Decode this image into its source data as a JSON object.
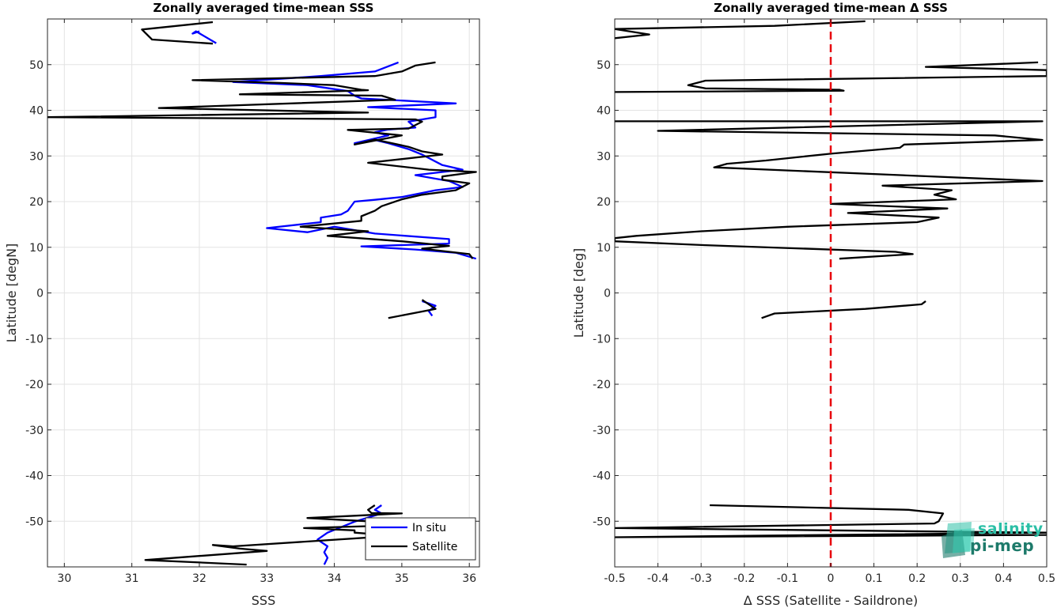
{
  "chart_data": [
    {
      "type": "line",
      "title": "Zonally averaged time-mean SSS",
      "xlabel": "SSS",
      "ylabel": "Latitude [degN]",
      "xlim": [
        29.75,
        36.15
      ],
      "ylim": [
        -60,
        60
      ],
      "xticks": [
        30,
        31,
        32,
        33,
        34,
        35,
        36
      ],
      "yticks": [
        -50,
        -40,
        -30,
        -20,
        -10,
        0,
        10,
        20,
        30,
        40,
        50
      ],
      "grid": true,
      "legend_position": "bottom-right",
      "series": [
        {
          "name": "In situ",
          "color": "#0000ff",
          "segments": [
            [
              [
                32.25,
                54.7
              ],
              [
                31.95,
                57.3
              ],
              [
                31.9,
                56.8
              ],
              [
                32.0,
                57.3
              ]
            ],
            [
              [
                34.95,
                50.5
              ],
              [
                34.6,
                48.5
              ],
              [
                33.8,
                47.5
              ],
              [
                32.5,
                46.2
              ],
              [
                33.6,
                45.5
              ],
              [
                34.2,
                44.2
              ],
              [
                34.3,
                43.2
              ],
              [
                34.4,
                42.6
              ],
              [
                35.8,
                41.5
              ],
              [
                34.5,
                40.7
              ],
              [
                35.5,
                40.0
              ],
              [
                35.5,
                38.5
              ],
              [
                35.1,
                37.5
              ],
              [
                35.2,
                36.2
              ],
              [
                34.8,
                35.8
              ],
              [
                34.6,
                35.2
              ],
              [
                34.8,
                34.5
              ],
              [
                34.3,
                32.8
              ],
              [
                34.6,
                33.5
              ],
              [
                34.8,
                32.8
              ],
              [
                35.1,
                31.5
              ],
              [
                35.3,
                30.3
              ],
              [
                35.6,
                28.0
              ],
              [
                35.9,
                27.0
              ],
              [
                35.2,
                25.8
              ],
              [
                35.7,
                24.5
              ],
              [
                35.9,
                23.2
              ],
              [
                35.5,
                22.5
              ],
              [
                35.0,
                21.0
              ],
              [
                34.6,
                20.4
              ],
              [
                34.3,
                20.0
              ],
              [
                34.2,
                18.0
              ],
              [
                34.1,
                17.2
              ],
              [
                33.8,
                16.5
              ],
              [
                33.8,
                15.5
              ],
              [
                33.0,
                14.2
              ],
              [
                33.6,
                13.3
              ],
              [
                34.0,
                14.5
              ],
              [
                34.6,
                13.0
              ],
              [
                35.7,
                11.8
              ],
              [
                35.7,
                10.8
              ],
              [
                34.4,
                10.2
              ],
              [
                35.2,
                9.5
              ],
              [
                35.8,
                8.8
              ],
              [
                36.1,
                7.5
              ]
            ],
            [
              [
                35.3,
                -1.8
              ],
              [
                35.5,
                -2.8
              ],
              [
                35.4,
                -4.0
              ],
              [
                35.45,
                -5.0
              ]
            ],
            [
              [
                34.7,
                -46.5
              ],
              [
                34.6,
                -47.5
              ],
              [
                34.7,
                -48.3
              ],
              [
                34.3,
                -50.1
              ],
              [
                33.9,
                -52.5
              ],
              [
                33.75,
                -54.0
              ],
              [
                33.9,
                -55.5
              ],
              [
                33.85,
                -56.8
              ],
              [
                33.9,
                -58.0
              ],
              [
                33.85,
                -59.5
              ]
            ]
          ]
        },
        {
          "name": "Satellite",
          "color": "#000000",
          "segments": [
            [
              [
                32.2,
                54.6
              ],
              [
                31.3,
                55.5
              ],
              [
                31.15,
                57.7
              ],
              [
                32.2,
                59.3
              ]
            ],
            [
              [
                35.5,
                50.5
              ],
              [
                35.2,
                49.8
              ],
              [
                35.0,
                48.5
              ],
              [
                34.6,
                47.5
              ],
              [
                31.9,
                46.6
              ],
              [
                33.2,
                46.0
              ],
              [
                34.0,
                45.5
              ],
              [
                34.4,
                44.5
              ],
              [
                34.5,
                44.4
              ],
              [
                32.6,
                43.5
              ],
              [
                34.7,
                43.2
              ],
              [
                34.9,
                42.3
              ],
              [
                31.4,
                40.5
              ],
              [
                34.5,
                39.5
              ],
              [
                29.75,
                38.5
              ],
              [
                35.2,
                38.0
              ],
              [
                35.3,
                37.5
              ],
              [
                35.1,
                36.0
              ],
              [
                34.2,
                35.7
              ],
              [
                35.0,
                34.5
              ],
              [
                34.3,
                32.5
              ],
              [
                34.6,
                33.6
              ],
              [
                35.1,
                32.0
              ],
              [
                35.3,
                31.0
              ],
              [
                35.6,
                30.3
              ],
              [
                34.5,
                28.5
              ],
              [
                35.4,
                27.0
              ],
              [
                36.1,
                26.5
              ],
              [
                35.6,
                25.5
              ],
              [
                35.6,
                24.8
              ],
              [
                36.0,
                24.0
              ],
              [
                35.8,
                22.5
              ],
              [
                35.3,
                21.5
              ],
              [
                35.0,
                20.5
              ],
              [
                34.7,
                19.0
              ],
              [
                34.6,
                18.0
              ],
              [
                34.4,
                16.8
              ],
              [
                34.4,
                15.8
              ],
              [
                33.5,
                14.5
              ],
              [
                34.5,
                13.5
              ],
              [
                33.9,
                12.5
              ],
              [
                35.0,
                11.3
              ],
              [
                35.7,
                10.3
              ],
              [
                35.3,
                9.7
              ],
              [
                36.0,
                8.5
              ],
              [
                36.05,
                7.5
              ]
            ],
            [
              [
                35.3,
                -1.5
              ],
              [
                35.5,
                -3.5
              ],
              [
                34.8,
                -5.5
              ]
            ],
            [
              [
                34.6,
                -46.5
              ],
              [
                34.5,
                -47.5
              ],
              [
                34.55,
                -48.2
              ],
              [
                35.0,
                -48.3
              ],
              [
                34.3,
                -48.8
              ],
              [
                33.6,
                -49.3
              ],
              [
                34.5,
                -50.0
              ],
              [
                34.7,
                -51.0
              ],
              [
                33.55,
                -51.5
              ],
              [
                34.3,
                -52.0
              ],
              [
                34.3,
                -52.5
              ],
              [
                34.9,
                -53.2
              ],
              [
                32.5,
                -55.5
              ],
              [
                32.2,
                -55.2
              ],
              [
                32.6,
                -56.0
              ],
              [
                33.0,
                -56.5
              ],
              [
                31.2,
                -58.5
              ],
              [
                32.7,
                -59.5
              ]
            ]
          ]
        }
      ]
    },
    {
      "type": "line",
      "title": "Zonally averaged time-mean Δ SSS",
      "xlabel": "Δ SSS (Satellite - Saildrone)",
      "ylabel": "Latitude [deg]",
      "xlim": [
        -0.5,
        0.5
      ],
      "ylim": [
        -60,
        60
      ],
      "xticks": [
        -0.5,
        -0.4,
        -0.3,
        -0.2,
        -0.1,
        0,
        0.1,
        0.2,
        0.3,
        0.4,
        0.5
      ],
      "yticks": [
        -50,
        -40,
        -30,
        -20,
        -10,
        0,
        10,
        20,
        30,
        40,
        50
      ],
      "grid": true,
      "reference_line": {
        "x": 0,
        "color": "#e8000b",
        "style": "dashed"
      },
      "series": [
        {
          "color": "#000000",
          "segments": [
            [
              [
                0.08,
                59.5
              ],
              [
                -0.13,
                58.5
              ],
              [
                -0.5,
                57.8
              ],
              [
                -0.42,
                56.6
              ],
              [
                -0.5,
                55.8
              ]
            ],
            [
              [
                0.48,
                50.5
              ],
              [
                0.22,
                49.5
              ],
              [
                0.5,
                48.8
              ],
              [
                0.5,
                47.5
              ],
              [
                -0.29,
                46.5
              ],
              [
                -0.33,
                45.5
              ],
              [
                -0.29,
                44.8
              ],
              [
                0.02,
                44.5
              ],
              [
                0.03,
                44.3
              ],
              [
                -0.5,
                44.0
              ]
            ],
            [
              [
                -0.5,
                37.6
              ],
              [
                0.49,
                37.6
              ],
              [
                -0.4,
                35.5
              ],
              [
                0.38,
                34.5
              ],
              [
                0.49,
                33.5
              ],
              [
                0.17,
                32.5
              ],
              [
                0.16,
                31.8
              ],
              [
                0.0,
                30.5
              ],
              [
                -0.1,
                29.5
              ],
              [
                -0.15,
                29.0
              ],
              [
                -0.24,
                28.3
              ],
              [
                -0.27,
                27.5
              ],
              [
                0.49,
                24.5
              ],
              [
                0.12,
                23.5
              ],
              [
                0.28,
                22.5
              ],
              [
                0.24,
                21.5
              ],
              [
                0.29,
                20.5
              ],
              [
                0.0,
                19.5
              ],
              [
                0.27,
                18.5
              ],
              [
                0.04,
                17.5
              ],
              [
                0.25,
                16.5
              ],
              [
                0.2,
                15.5
              ],
              [
                -0.1,
                14.5
              ],
              [
                -0.3,
                13.5
              ],
              [
                -0.45,
                12.5
              ],
              [
                -0.5,
                12.0
              ],
              [
                -0.5,
                11.3
              ],
              [
                -0.3,
                10.5
              ],
              [
                0.15,
                9.0
              ],
              [
                0.19,
                8.5
              ],
              [
                0.02,
                7.5
              ]
            ],
            [
              [
                0.22,
                -1.8
              ],
              [
                0.21,
                -2.5
              ],
              [
                0.08,
                -3.5
              ],
              [
                -0.13,
                -4.5
              ],
              [
                -0.16,
                -5.5
              ]
            ],
            [
              [
                -0.28,
                -46.5
              ],
              [
                0.18,
                -47.5
              ],
              [
                0.26,
                -48.3
              ],
              [
                0.25,
                -50.0
              ],
              [
                0.24,
                -50.5
              ],
              [
                -0.5,
                -51.5
              ],
              [
                0.5,
                -52.5
              ],
              [
                -0.5,
                -53.5
              ],
              [
                0.5,
                -53.0
              ],
              [
                0.5,
                -52.8
              ]
            ]
          ]
        }
      ]
    }
  ],
  "legend": [
    "In situ",
    "Satellite"
  ],
  "logo": {
    "line1": "salinity",
    "line2": "pi-mep",
    "color1": "#2bbfa6",
    "color2": "#1d7a6a"
  }
}
